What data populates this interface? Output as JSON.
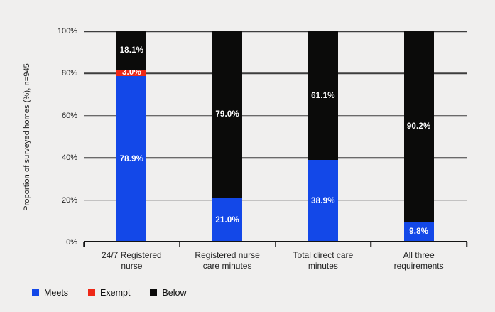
{
  "chart_data": {
    "type": "bar",
    "stacked": true,
    "title": "",
    "ylabel": "Proportion of surveyed homes (%), n=945",
    "xlabel": "",
    "ylim": [
      0,
      100
    ],
    "yticks": [
      0,
      20,
      40,
      60,
      80,
      100
    ],
    "ytick_suffix": "%",
    "grid": true,
    "categories": [
      [
        "24/7 Registered",
        "nurse"
      ],
      [
        "Registered nurse",
        "care minutes"
      ],
      [
        "Total direct care",
        "minutes"
      ],
      [
        "All three",
        "requirements"
      ]
    ],
    "series": [
      {
        "name": "Meets",
        "color": "#1348e8",
        "values": [
          78.9,
          21.0,
          38.9,
          9.8
        ]
      },
      {
        "name": "Exempt",
        "color": "#ee2817",
        "values": [
          3.0,
          0,
          0,
          0
        ]
      },
      {
        "name": "Below",
        "color": "#0b0b0a",
        "values": [
          18.1,
          79.0,
          61.1,
          90.2
        ]
      }
    ],
    "value_label_decimals": 1,
    "value_label_suffix": "%",
    "legend": {
      "position": "bottom-left",
      "entries": [
        "Meets",
        "Exempt",
        "Below"
      ]
    },
    "colors": {
      "background": "#f0efee",
      "text": "#1c1c1c",
      "gridline": "#3d3d3d",
      "axis": "#141414",
      "value_label": "#ffffff"
    }
  }
}
